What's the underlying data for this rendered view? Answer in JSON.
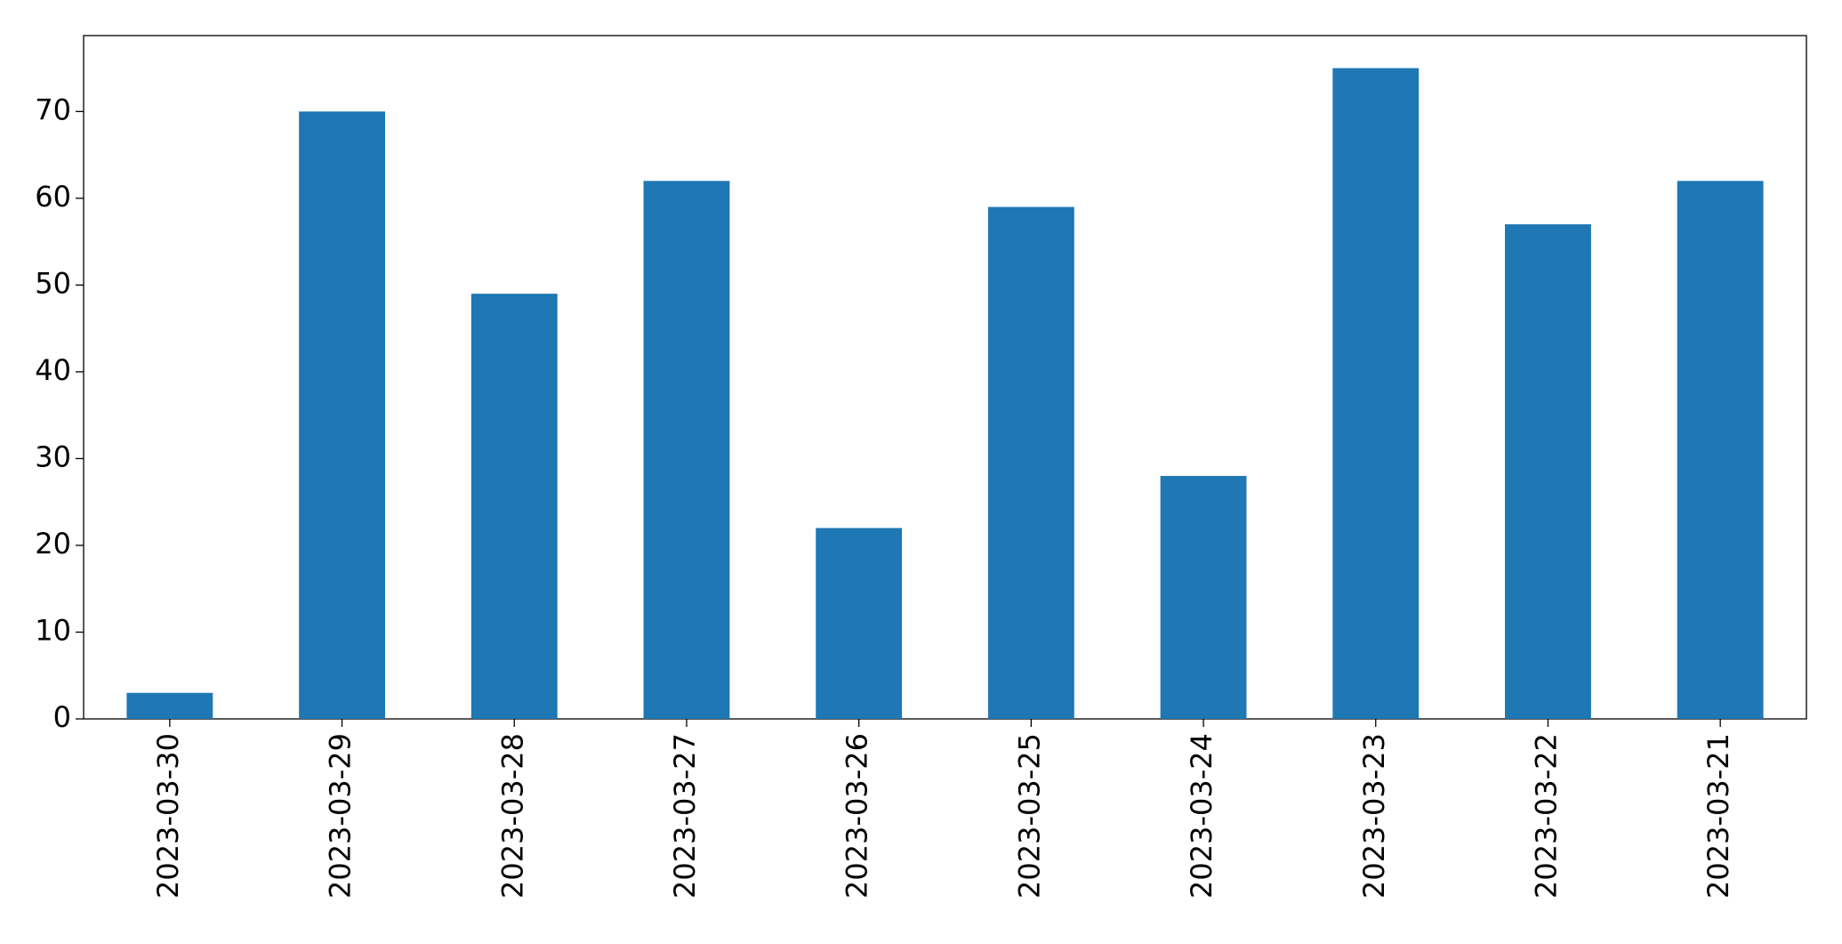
{
  "chart_data": {
    "type": "bar",
    "categories": [
      "2023-03-30",
      "2023-03-29",
      "2023-03-28",
      "2023-03-27",
      "2023-03-26",
      "2023-03-25",
      "2023-03-24",
      "2023-03-23",
      "2023-03-22",
      "2023-03-21"
    ],
    "values": [
      3,
      70,
      49,
      62,
      22,
      59,
      28,
      75,
      57,
      62
    ],
    "color": "#1f77b4",
    "ylim": [
      0,
      78.75
    ],
    "yticks": [
      0,
      10,
      20,
      30,
      40,
      50,
      60,
      70
    ],
    "grid": false
  }
}
